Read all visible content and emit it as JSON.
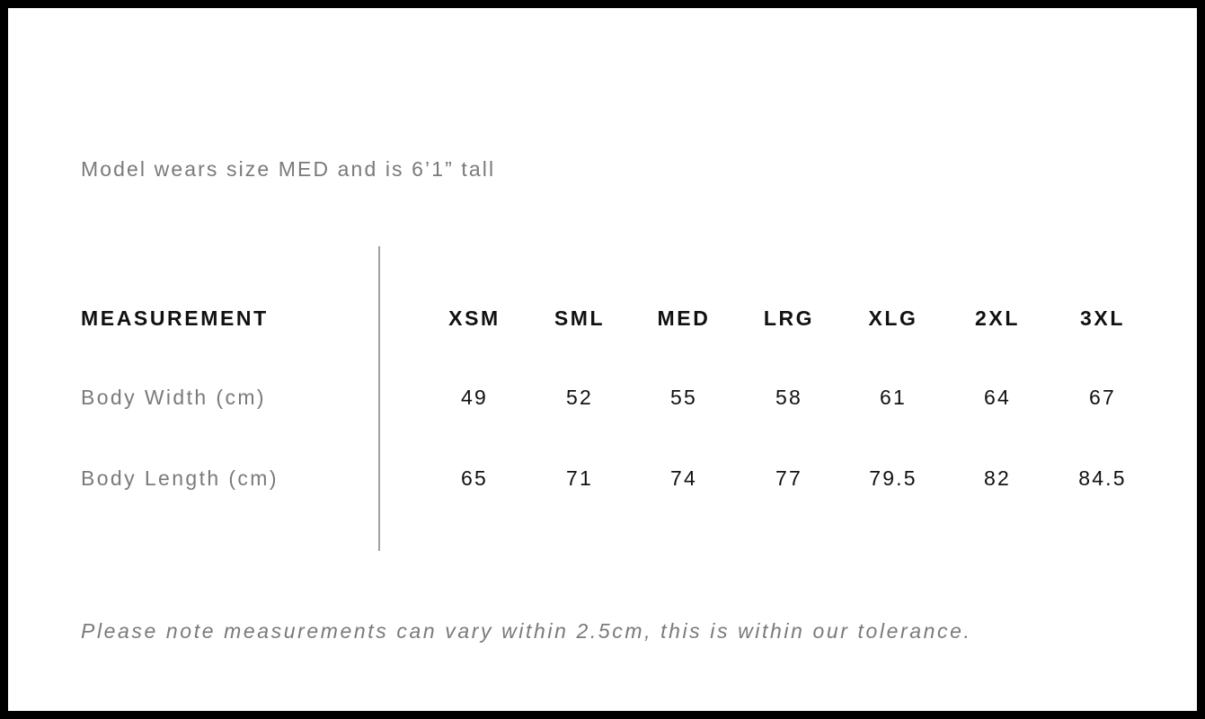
{
  "model_note": "Model wears size MED and is 6’1” tall",
  "table": {
    "header_label": "MEASUREMENT",
    "sizes": [
      "XSM",
      "SML",
      "MED",
      "LRG",
      "XLG",
      "2XL",
      "3XL"
    ],
    "rows": [
      {
        "label": "Body Width (cm)",
        "values": [
          "49",
          "52",
          "55",
          "58",
          "61",
          "64",
          "67"
        ]
      },
      {
        "label": "Body Length (cm)",
        "values": [
          "65",
          "71",
          "74",
          "77",
          "79.5",
          "82",
          "84.5"
        ]
      }
    ]
  },
  "footer_note": "Please note measurements can vary within 2.5cm, this is within our tolerance."
}
